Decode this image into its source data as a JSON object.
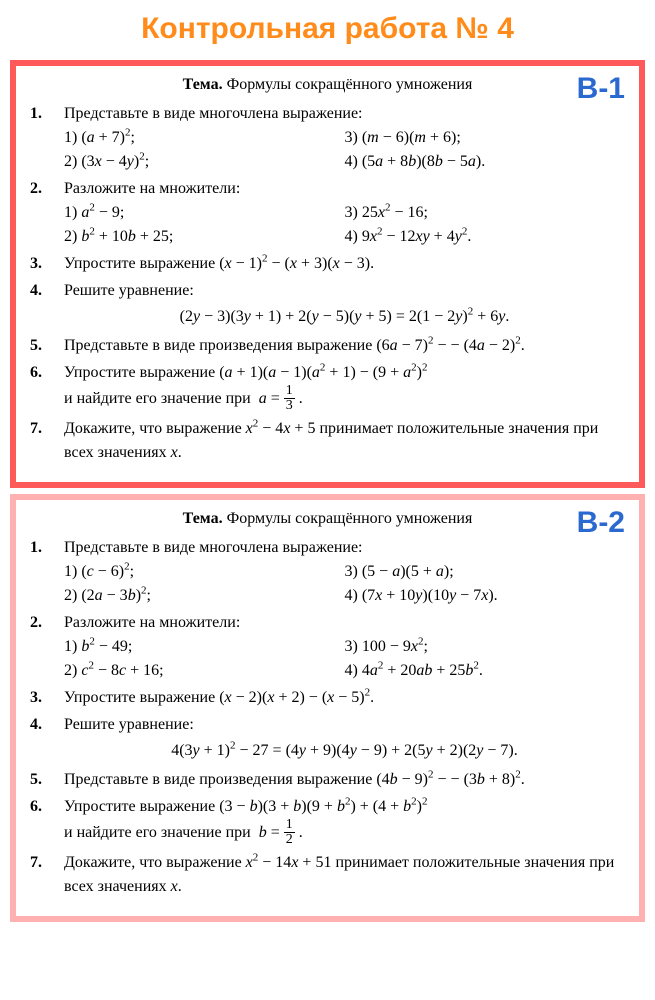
{
  "title": "Контрольная работа № 4",
  "title_color": "#ff8c1a",
  "variants": [
    {
      "label": "В-1",
      "label_color": "#2a6ad0",
      "border_color": "#ff5a5a",
      "topic_prefix": "Тема.",
      "topic_text": "Формулы сокращённого умножения",
      "problems": [
        {
          "num": "1.",
          "text": "Представьте в виде многочлена выражение:",
          "sub": [
            [
              "1) (a + 7)²;",
              "3) (m − 6)(m + 6);"
            ],
            [
              "2) (3x − 4y)²;",
              "4) (5a + 8b)(8b − 5a)."
            ]
          ]
        },
        {
          "num": "2.",
          "text": "Разложите на множители:",
          "sub": [
            [
              "1) a² − 9;",
              "3) 25x² − 16;"
            ],
            [
              "2) b² + 10b + 25;",
              "4) 9x² − 12xy + 4y²."
            ]
          ]
        },
        {
          "num": "3.",
          "text": "Упростите выражение (x − 1)² − (x + 3)(x − 3)."
        },
        {
          "num": "4.",
          "text": "Решите уравнение:",
          "eq": "(2y − 3)(3y + 1) + 2(y − 5)(y + 5) = 2(1 − 2y)² + 6y."
        },
        {
          "num": "5.",
          "text": "Представьте в виде произведения выражение (6a − 7)² − − (4a − 2)²."
        },
        {
          "num": "6.",
          "text_line1": "Упростите выражение (a + 1)(a − 1)(a² + 1) − (9 + a²)²",
          "text_line2": "и найдите его значение при  a = ",
          "frac": {
            "num": "1",
            "den": "3"
          },
          "period": " ."
        },
        {
          "num": "7.",
          "text": "Докажите, что выражение x² − 4x + 5 принимает положительные значения при всех значениях x."
        }
      ]
    },
    {
      "label": "В-2",
      "label_color": "#2a6ad0",
      "border_color": "#ffb0b0",
      "topic_prefix": "Тема.",
      "topic_text": "Формулы сокращённого умножения",
      "problems": [
        {
          "num": "1.",
          "text": "Представьте в виде многочлена выражение:",
          "sub": [
            [
              "1) (c − 6)²;",
              "3) (5 − a)(5 + a);"
            ],
            [
              "2) (2a − 3b)²;",
              "4) (7x + 10y)(10y − 7x)."
            ]
          ]
        },
        {
          "num": "2.",
          "text": "Разложите на множители:",
          "sub": [
            [
              "1) b² − 49;",
              "3) 100 − 9x²;"
            ],
            [
              "2) c² − 8c + 16;",
              "4) 4a² + 20ab + 25b²."
            ]
          ]
        },
        {
          "num": "3.",
          "text": "Упростите выражение (x − 2)(x + 2) − (x − 5)²."
        },
        {
          "num": "4.",
          "text": "Решите уравнение:",
          "eq": "4(3y + 1)² − 27 = (4y + 9)(4y − 9) + 2(5y + 2)(2y − 7)."
        },
        {
          "num": "5.",
          "text": "Представьте в виде произведения выражение (4b − 9)² − − (3b + 8)²."
        },
        {
          "num": "6.",
          "text_line1": "Упростите выражение (3 − b)(3 + b)(9 + b²) + (4 + b²)²",
          "text_line2": "и найдите его значение при  b = ",
          "frac": {
            "num": "1",
            "den": "2"
          },
          "period": " ."
        },
        {
          "num": "7.",
          "text": "Докажите, что выражение x² − 14x + 51 принимает положительные значения при всех значениях x."
        }
      ]
    }
  ]
}
